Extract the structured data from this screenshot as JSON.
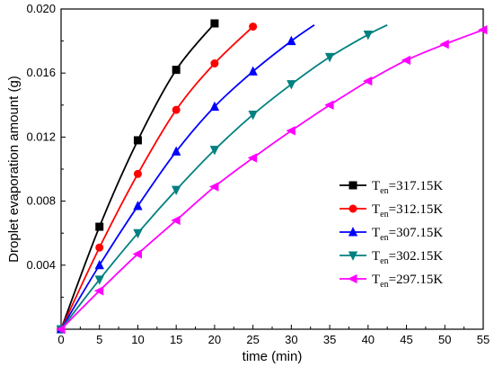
{
  "chart_data": {
    "type": "line",
    "title": "",
    "xlabel": "time  (min)",
    "ylabel": "Droplet evaporation amount (g)",
    "xlim": [
      0,
      55
    ],
    "ylim": [
      0,
      0.02
    ],
    "x_ticks": [
      "0",
      "5",
      "10",
      "15",
      "20",
      "25",
      "30",
      "35",
      "40",
      "45",
      "50",
      "55"
    ],
    "y_ticks": [
      "0.004",
      "0.008",
      "0.012",
      "0.016",
      "0.020"
    ],
    "y_tick_values": [
      0.004,
      0.008,
      0.012,
      0.016,
      0.02
    ],
    "grid": false,
    "legend_position": "right",
    "series": [
      {
        "name_main": "T",
        "name_sub": "en",
        "name_rest": "=317.15K",
        "color": "#000000",
        "marker": "square",
        "x": [
          0,
          5,
          10,
          15,
          20
        ],
        "y": [
          0,
          0.0064,
          0.0118,
          0.0162,
          0.0191
        ]
      },
      {
        "name_main": "T",
        "name_sub": "en",
        "name_rest": "=312.15K",
        "color": "#ff0000",
        "marker": "circle",
        "x": [
          0,
          5,
          10,
          15,
          20,
          25
        ],
        "y": [
          0,
          0.0051,
          0.0097,
          0.0137,
          0.0166,
          0.0189
        ]
      },
      {
        "name_main": "T",
        "name_sub": "en",
        "name_rest": "=307.15K",
        "color": "#0000ff",
        "marker": "triangle-up",
        "x": [
          0,
          5,
          10,
          15,
          20,
          25,
          30,
          33
        ],
        "y": [
          0,
          0.004,
          0.0077,
          0.0111,
          0.0139,
          0.0161,
          0.018,
          0.019
        ]
      },
      {
        "name_main": "T",
        "name_sub": "en",
        "name_rest": "=302.15K",
        "color": "#008080",
        "marker": "triangle-down",
        "x": [
          0,
          5,
          10,
          15,
          20,
          25,
          30,
          35,
          40,
          42.5
        ],
        "y": [
          0,
          0.0031,
          0.006,
          0.0087,
          0.0112,
          0.0134,
          0.0153,
          0.017,
          0.0184,
          0.019
        ]
      },
      {
        "name_main": "T",
        "name_sub": "en",
        "name_rest": "=297.15K",
        "color": "#ff00ff",
        "marker": "triangle-left",
        "x": [
          0,
          5,
          10,
          15,
          20,
          25,
          30,
          35,
          40,
          45,
          50,
          55
        ],
        "y": [
          0,
          0.0024,
          0.0047,
          0.0068,
          0.0089,
          0.0107,
          0.0124,
          0.014,
          0.0155,
          0.0168,
          0.0178,
          0.0187
        ]
      }
    ]
  }
}
